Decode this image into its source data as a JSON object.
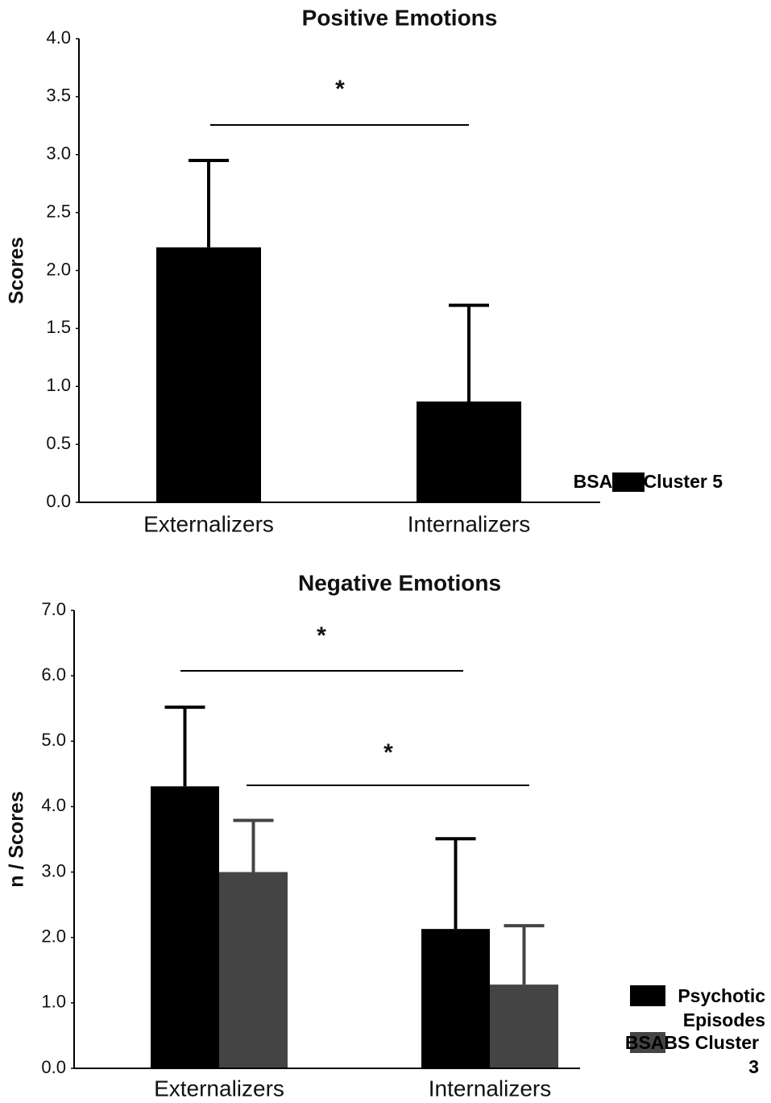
{
  "chart_data": [
    {
      "type": "bar",
      "title": "Positive Emotions",
      "y_label": "Scores",
      "categories": [
        "Externalizers",
        "Internalizers"
      ],
      "series": [
        {
          "name": "BSABS Cluster 5",
          "color": "#000000",
          "values": [
            2.2,
            0.87
          ],
          "errors": [
            0.75,
            0.83
          ]
        }
      ],
      "ylim": [
        0,
        4
      ],
      "yticks": [
        {
          "value": 0,
          "label": "0.0"
        },
        {
          "value": 0.5,
          "label": "0.5"
        },
        {
          "value": 1,
          "label": "1.0"
        },
        {
          "value": 1.5,
          "label": "1.5"
        },
        {
          "value": 2,
          "label": "2.0"
        },
        {
          "value": 2.5,
          "label": "2.5"
        },
        {
          "value": 3,
          "label": "3.0"
        },
        {
          "value": 3.5,
          "label": "3.5"
        },
        {
          "value": 4,
          "label": "4.0"
        }
      ],
      "annotations": [
        "*"
      ]
    },
    {
      "type": "bar",
      "title": "Negative Emotions",
      "y_label": "n / Scores",
      "categories": [
        "Externalizers",
        "Internalizers"
      ],
      "series": [
        {
          "name": "Psychotic Episodes",
          "color": "#000000",
          "values": [
            4.31,
            2.13
          ],
          "errors": [
            1.21,
            1.38
          ]
        },
        {
          "name": "BSABS Cluster 3",
          "color": "#444444",
          "values": [
            3.0,
            1.28
          ],
          "errors": [
            0.79,
            0.9
          ]
        }
      ],
      "ylim": [
        0,
        7
      ],
      "yticks": [
        {
          "value": 0,
          "label": "0.0"
        },
        {
          "value": 1,
          "label": "1.0"
        },
        {
          "value": 2,
          "label": "2.0"
        },
        {
          "value": 3,
          "label": "3.0"
        },
        {
          "value": 4,
          "label": "4.0"
        },
        {
          "value": 5,
          "label": "5.0"
        },
        {
          "value": 6,
          "label": "6.0"
        },
        {
          "value": 7,
          "label": "7.0"
        }
      ],
      "annotations": [
        "*",
        "*"
      ]
    }
  ]
}
